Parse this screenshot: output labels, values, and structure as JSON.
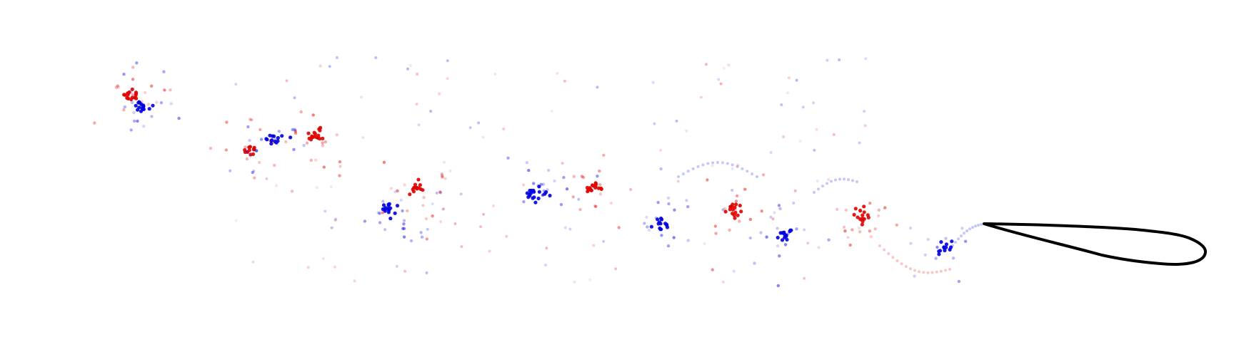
{
  "diagram": {
    "type": "vortex-wake-scatter",
    "background": "#ffffff",
    "colors": {
      "positive_vorticity": "#e00000",
      "negative_vorticity": "#0000e0",
      "body_outline": "#000000"
    },
    "body": {
      "shape": "airfoil",
      "color": "#000000"
    },
    "vortex_clusters": [
      {
        "sign": "positive"
      },
      {
        "sign": "negative"
      },
      {
        "sign": "positive"
      },
      {
        "sign": "negative"
      },
      {
        "sign": "positive"
      },
      {
        "sign": "negative"
      },
      {
        "sign": "positive"
      },
      {
        "sign": "negative"
      },
      {
        "sign": "positive"
      },
      {
        "sign": "negative"
      },
      {
        "sign": "positive"
      },
      {
        "sign": "negative"
      },
      {
        "sign": "positive"
      },
      {
        "sign": "negative"
      }
    ]
  }
}
